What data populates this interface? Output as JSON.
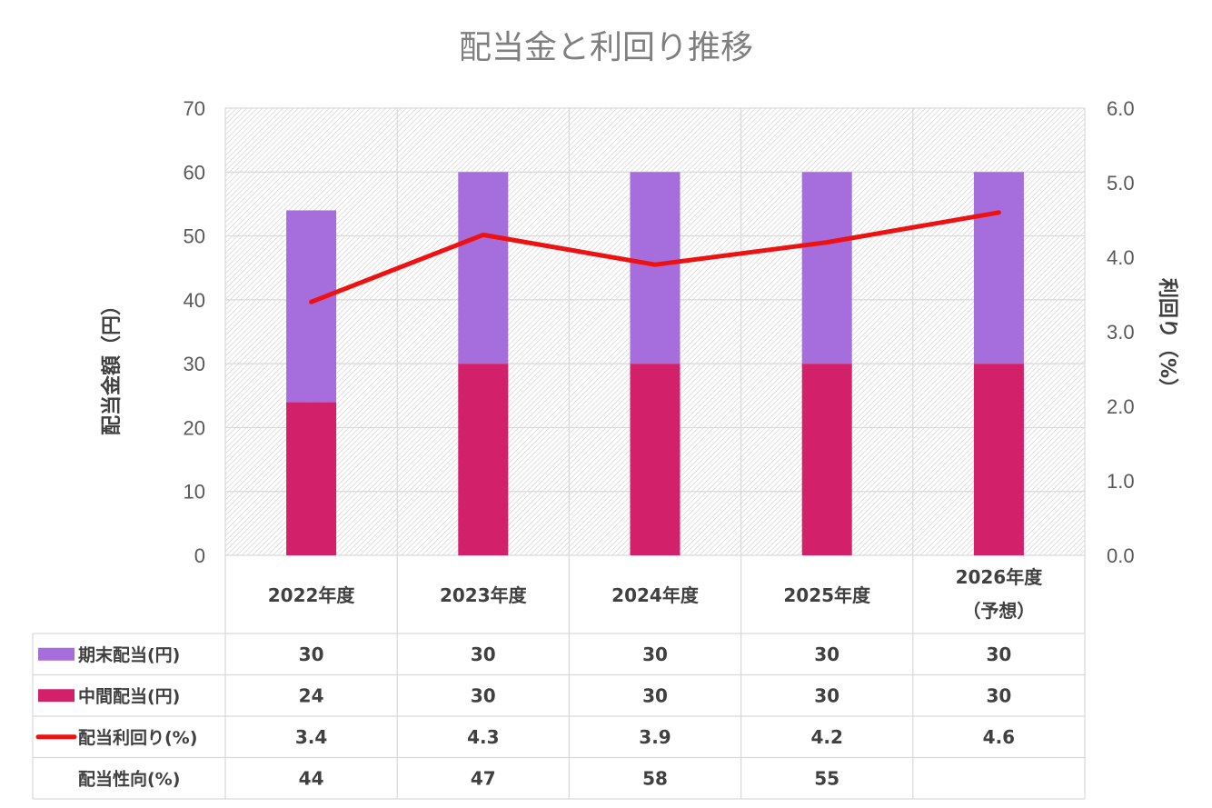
{
  "chart_data": {
    "type": "bar",
    "title": "配当金と利回り推移",
    "ylabel": "配当金額（円）",
    "y2label": "利回り（%）",
    "ylim": [
      0,
      70
    ],
    "y2lim": [
      0,
      6
    ],
    "yticks": [
      "0",
      "10",
      "20",
      "30",
      "40",
      "50",
      "60",
      "70"
    ],
    "y2ticks": [
      "0.0",
      "1.0",
      "2.0",
      "3.0",
      "4.0",
      "5.0",
      "6.0"
    ],
    "grid": true,
    "stacked": true,
    "categories": [
      [
        "2022年度"
      ],
      [
        "2023年度"
      ],
      [
        "2024年度"
      ],
      [
        "2025年度"
      ],
      [
        "2026年度",
        "（予想）"
      ]
    ],
    "series": [
      {
        "name": "期末配当(円)",
        "type": "bar",
        "color": "#a66ddc",
        "values": [
          30,
          30,
          30,
          30,
          30
        ],
        "labels": [
          "30",
          "30",
          "30",
          "30",
          "30"
        ]
      },
      {
        "name": "中間配当(円)",
        "type": "bar",
        "color": "#d3206a",
        "values": [
          24,
          30,
          30,
          30,
          30
        ],
        "labels": [
          "24",
          "30",
          "30",
          "30",
          "30"
        ]
      },
      {
        "name": "配当利回り(%)",
        "type": "line",
        "axis": "right",
        "color": "#ee1111",
        "values": [
          3.4,
          4.3,
          3.9,
          4.2,
          4.6
        ],
        "labels": [
          "3.4",
          "4.3",
          "3.9",
          "4.2",
          "4.6"
        ]
      }
    ],
    "table_rows": [
      {
        "name": "配当性向(%)",
        "labels": [
          "44",
          "47",
          "58",
          "55",
          ""
        ]
      }
    ]
  }
}
